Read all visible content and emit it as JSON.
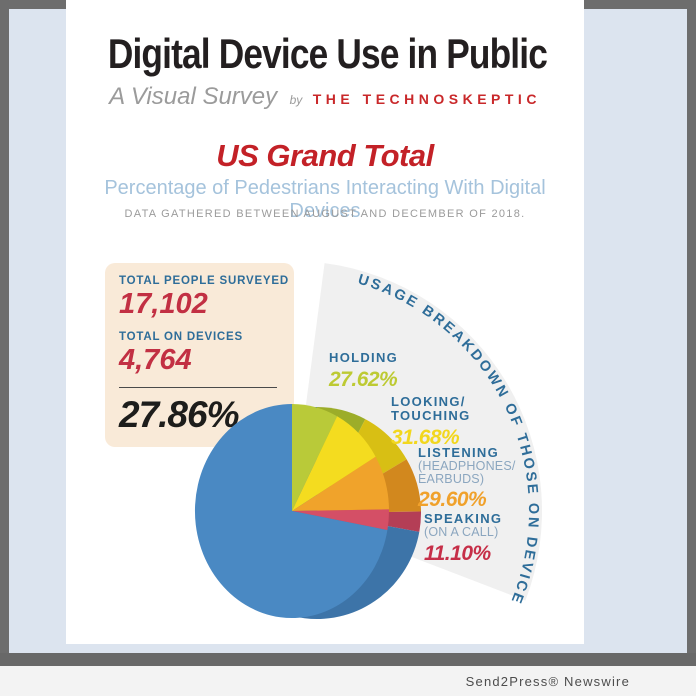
{
  "header": {
    "title": "Digital Device Use in Public",
    "survey_label": "A Visual Survey",
    "by_label": "by",
    "brand": "THE TECHNOSKEPTIC"
  },
  "section": {
    "heading": "US Grand Total",
    "subheading": "Percentage of Pedestrians Interacting With Digital Devices",
    "note": "DATA GATHERED BETWEEN AUGUST AND DECEMBER OF 2018."
  },
  "stats": {
    "surveyed_label": "TOTAL PEOPLE SURVEYED",
    "surveyed_value": "17,102",
    "on_devices_label": "TOTAL ON DEVICES",
    "on_devices_value": "4,764",
    "grand_percent": "27.86%"
  },
  "footer": {
    "credit": "Send2Press® Newswire"
  },
  "chart_data": {
    "type": "pie",
    "title": "US Grand Total",
    "subtitle": "Percentage of Pedestrians Interacting With Digital Devices",
    "note": "Data gathered between August and December of 2018",
    "total_people_surveyed": 17102,
    "total_on_devices": 4764,
    "percent_on_devices": 27.86,
    "percent_not_on_devices": 72.14,
    "arc_label": "USAGE BREAKDOWN OF THOSE ON DEVICES",
    "slices": [
      {
        "label": "Holding",
        "sublabel": "",
        "pct_of_on_devices": 27.62,
        "color": "#b9ca39",
        "rim_color": "#9cad29"
      },
      {
        "label": "Looking/Touching",
        "sublabel": "",
        "pct_of_on_devices": 31.68,
        "color": "#f4dc1f",
        "rim_color": "#d8bf14"
      },
      {
        "label": "Listening",
        "sublabel": "(Headphones/Earbuds)",
        "pct_of_on_devices": 29.6,
        "color": "#f0a32b",
        "rim_color": "#d2881e"
      },
      {
        "label": "Speaking",
        "sublabel": "(On a Call)",
        "pct_of_on_devices": 11.1,
        "color": "#d44f66",
        "rim_color": "#b43e56"
      }
    ],
    "remainder": {
      "pct_of_total": 72.14,
      "color": "#4a89c3",
      "rim_color": "#3d74a8"
    }
  },
  "legend": [
    {
      "label": "HOLDING",
      "value": "27.62%",
      "value_color": "#bdca33"
    },
    {
      "label": "LOOKING/",
      "label2": "TOUCHING",
      "value": "31.68%",
      "value_color": "#f2d71e"
    },
    {
      "label": "LISTENING",
      "sub": "(HEADPHONES/",
      "sub2": "EARBUDS)",
      "value": "29.60%",
      "value_color": "#f0a12b"
    },
    {
      "label": "SPEAKING",
      "sub": "(ON A CALL)",
      "value": "11.10%",
      "value_color": "#c62f48"
    }
  ]
}
